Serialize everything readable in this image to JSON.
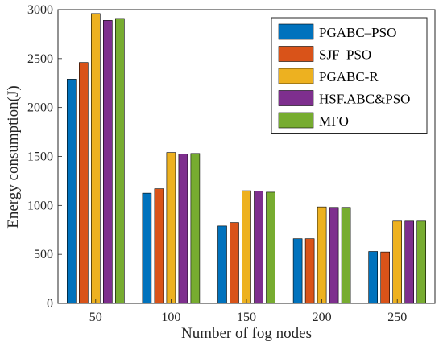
{
  "chart_data": {
    "type": "bar",
    "title": "",
    "xlabel": "Number of fog nodes",
    "ylabel": "Energy consumption(J)",
    "categories": [
      "50",
      "100",
      "150",
      "200",
      "250"
    ],
    "ylim": [
      0,
      3000
    ],
    "yticks": [
      0,
      500,
      1000,
      1500,
      2000,
      2500,
      3000
    ],
    "grid": false,
    "legend_position": "top-right",
    "series": [
      {
        "name": "PGABC–PSO",
        "color": "#0072BD",
        "values": [
          2290,
          1125,
          790,
          660,
          530
        ]
      },
      {
        "name": "SJF–PSO",
        "color": "#D95319",
        "values": [
          2460,
          1170,
          825,
          660,
          525
        ]
      },
      {
        "name": "PGABC-R",
        "color": "#EDB120",
        "values": [
          2960,
          1540,
          1150,
          985,
          840
        ]
      },
      {
        "name": "HSF.ABC&PSO",
        "color": "#7E2F8E",
        "values": [
          2890,
          1525,
          1145,
          980,
          840
        ]
      },
      {
        "name": "MFO",
        "color": "#77AC30",
        "values": [
          2910,
          1530,
          1135,
          980,
          840
        ]
      }
    ]
  }
}
